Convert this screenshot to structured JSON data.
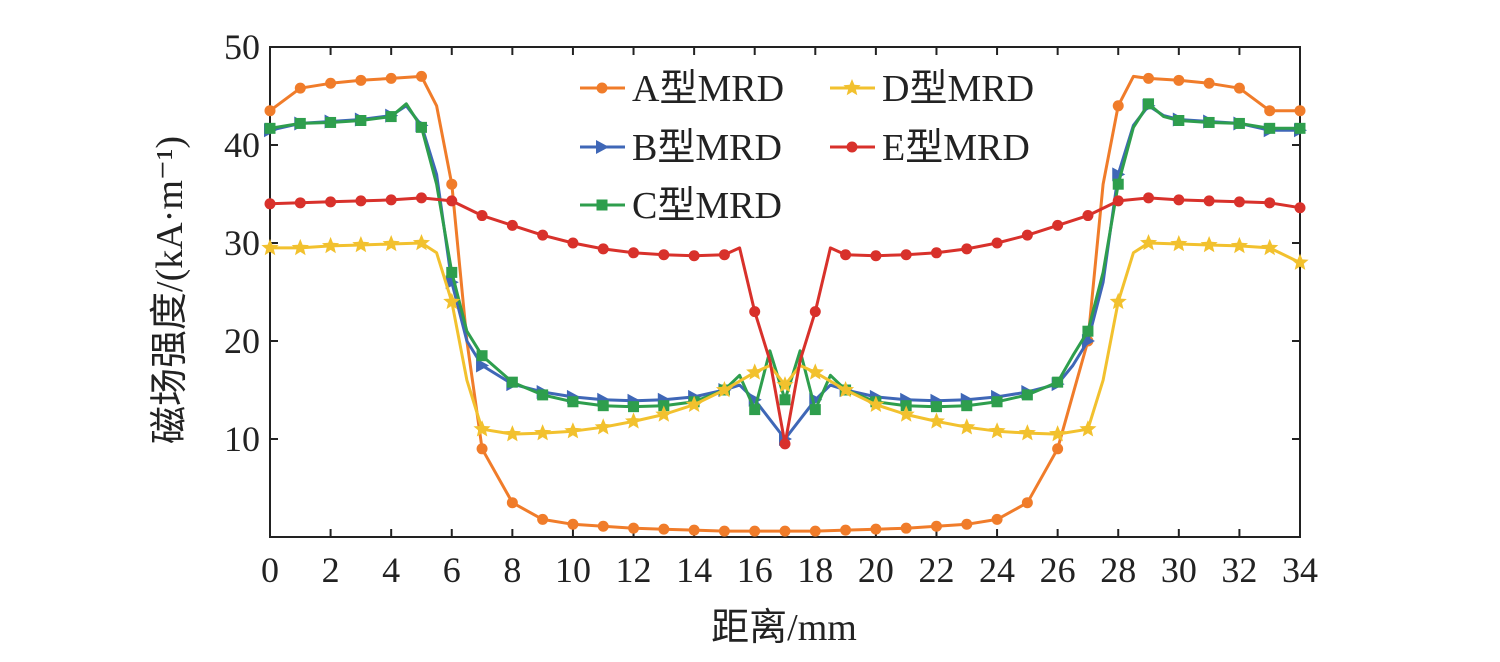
{
  "chart_data": {
    "type": "line",
    "title": "",
    "xlabel": "距离/mm",
    "ylabel": "磁场强度/(kA·m⁻¹)",
    "xlim": [
      0,
      34
    ],
    "ylim": [
      0,
      50
    ],
    "x_ticks": [
      "0",
      "2",
      "4",
      "6",
      "8",
      "10",
      "12",
      "14",
      "16",
      "18",
      "20",
      "22",
      "24",
      "26",
      "28",
      "30",
      "32",
      "34"
    ],
    "y_ticks": [
      "10",
      "20",
      "30",
      "40",
      "50"
    ],
    "legend_position": "top-center",
    "grid": false,
    "series": [
      {
        "name": "A型MRD",
        "color": "#f07c2a",
        "marker": "circle",
        "x": [
          0,
          1,
          2,
          3,
          4,
          5,
          5.5,
          6,
          6.5,
          7,
          8,
          9,
          10,
          11,
          12,
          13,
          14,
          15,
          16,
          17,
          18,
          19,
          20,
          21,
          22,
          23,
          24,
          25,
          26,
          27,
          27.5,
          28,
          28.5,
          29,
          30,
          31,
          32,
          33,
          34
        ],
        "y": [
          43.5,
          45.8,
          46.3,
          46.6,
          46.8,
          47.0,
          44,
          36,
          20,
          9,
          3.5,
          1.8,
          1.3,
          1.1,
          0.9,
          0.8,
          0.7,
          0.6,
          0.6,
          0.6,
          0.6,
          0.7,
          0.8,
          0.9,
          1.1,
          1.3,
          1.8,
          3.5,
          9,
          20,
          36,
          44,
          47.0,
          46.8,
          46.6,
          46.3,
          45.8,
          43.5,
          43.5
        ]
      },
      {
        "name": "B型MRD",
        "color": "#3f67b7",
        "marker": "triangle-right",
        "x": [
          0,
          1,
          2,
          3,
          4,
          4.5,
          5,
          5.5,
          6,
          6.5,
          7,
          8,
          9,
          10,
          11,
          12,
          13,
          14,
          15,
          15.5,
          16,
          16.5,
          17,
          17.5,
          18,
          18.5,
          19,
          20,
          21,
          22,
          23,
          24,
          25,
          26,
          26.5,
          27,
          27.5,
          28,
          28.5,
          29,
          29.5,
          30,
          31,
          32,
          33,
          34
        ],
        "y": [
          41.5,
          42.2,
          42.4,
          42.6,
          43.0,
          44.0,
          42.0,
          37,
          26,
          20,
          17.5,
          15.6,
          14.8,
          14.3,
          14.0,
          13.9,
          14.0,
          14.3,
          15.0,
          15.5,
          14,
          12,
          10,
          12,
          14,
          15.5,
          15.0,
          14.3,
          14.0,
          13.9,
          14.0,
          14.3,
          14.8,
          15.6,
          17.5,
          20,
          26,
          37,
          42.0,
          44.0,
          43.0,
          42.6,
          42.4,
          42.2,
          41.5,
          41.5
        ]
      },
      {
        "name": "C型MRD",
        "color": "#2e9e4d",
        "marker": "square",
        "x": [
          0,
          1,
          2,
          3,
          4,
          4.5,
          5,
          5.5,
          6,
          6.5,
          7,
          8,
          9,
          10,
          11,
          12,
          13,
          14,
          15,
          15.5,
          16,
          16.5,
          17,
          17.5,
          18,
          18.5,
          19,
          20,
          21,
          22,
          23,
          24,
          25,
          26,
          26.5,
          27,
          27.5,
          28,
          28.5,
          29,
          29.5,
          30,
          31,
          32,
          33,
          34
        ],
        "y": [
          41.7,
          42.2,
          42.3,
          42.5,
          42.9,
          44.2,
          41.8,
          36,
          27,
          21,
          18.5,
          15.8,
          14.5,
          13.8,
          13.4,
          13.3,
          13.4,
          13.8,
          15.0,
          16.5,
          13,
          19,
          14,
          19,
          13,
          16.5,
          15.0,
          13.8,
          13.4,
          13.3,
          13.4,
          13.8,
          14.5,
          15.8,
          18.5,
          21,
          27,
          36,
          41.8,
          44.2,
          42.9,
          42.5,
          42.3,
          42.2,
          41.7,
          41.7
        ]
      },
      {
        "name": "D型MRD",
        "color": "#f2c12e",
        "marker": "star",
        "x": [
          0,
          1,
          2,
          3,
          4,
          5,
          5.5,
          6,
          6.5,
          7,
          8,
          9,
          10,
          11,
          12,
          13,
          14,
          15,
          16,
          16.5,
          17,
          17.5,
          18,
          19,
          20,
          21,
          22,
          23,
          24,
          25,
          26,
          27,
          27.5,
          28,
          28.5,
          29,
          30,
          31,
          32,
          33,
          34
        ],
        "y": [
          29.5,
          29.5,
          29.7,
          29.8,
          29.9,
          30.0,
          29,
          24,
          16,
          11,
          10.5,
          10.6,
          10.8,
          11.2,
          11.8,
          12.5,
          13.5,
          15.0,
          16.8,
          17.5,
          15.5,
          17.5,
          16.8,
          15.0,
          13.5,
          12.5,
          11.8,
          11.2,
          10.8,
          10.6,
          10.5,
          11,
          16,
          24,
          29,
          30.0,
          29.9,
          29.8,
          29.7,
          29.5,
          28.0
        ]
      },
      {
        "name": "E型MRD",
        "color": "#d8312b",
        "marker": "circle",
        "x": [
          0,
          1,
          2,
          3,
          4,
          5,
          6,
          7,
          8,
          9,
          10,
          11,
          12,
          13,
          14,
          15,
          15.5,
          16,
          16.5,
          17,
          17.5,
          18,
          18.5,
          19,
          20,
          21,
          22,
          23,
          24,
          25,
          26,
          27,
          28,
          29,
          30,
          31,
          32,
          33,
          34
        ],
        "y": [
          34.0,
          34.1,
          34.2,
          34.3,
          34.4,
          34.6,
          34.3,
          32.8,
          31.8,
          30.8,
          30.0,
          29.4,
          29.0,
          28.8,
          28.7,
          28.8,
          29.5,
          23,
          18,
          9.5,
          18,
          23,
          29.5,
          28.8,
          28.7,
          28.8,
          29.0,
          29.4,
          30.0,
          30.8,
          31.8,
          32.8,
          34.3,
          34.6,
          34.4,
          34.3,
          34.2,
          34.1,
          33.6
        ]
      }
    ]
  }
}
